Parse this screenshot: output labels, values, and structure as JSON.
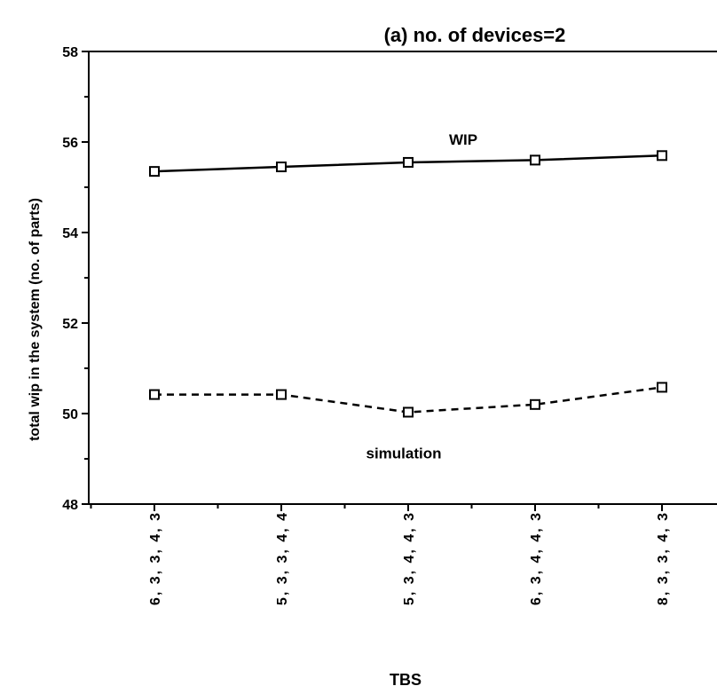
{
  "chart_data": {
    "type": "line",
    "title": "(a) no. of devices=2",
    "xlabel": "TBS",
    "ylabel": "total wip in the system (no. of parts)",
    "categories": [
      "6,3,3,4,3",
      "5,3,3,4,4",
      "5,3,4,4,3",
      "6,3,4,4,3",
      "8,3,3,4,3"
    ],
    "ylim": [
      48,
      58
    ],
    "yticks": [
      48,
      50,
      52,
      54,
      56,
      58
    ],
    "grid": false,
    "series": [
      {
        "name": "WIP",
        "values": [
          55.35,
          55.45,
          55.55,
          55.6,
          55.7
        ],
        "line_style": "solid"
      },
      {
        "name": "simulation",
        "values": [
          50.42,
          50.42,
          50.03,
          50.2,
          50.58
        ],
        "line_style": "dashed"
      }
    ]
  }
}
